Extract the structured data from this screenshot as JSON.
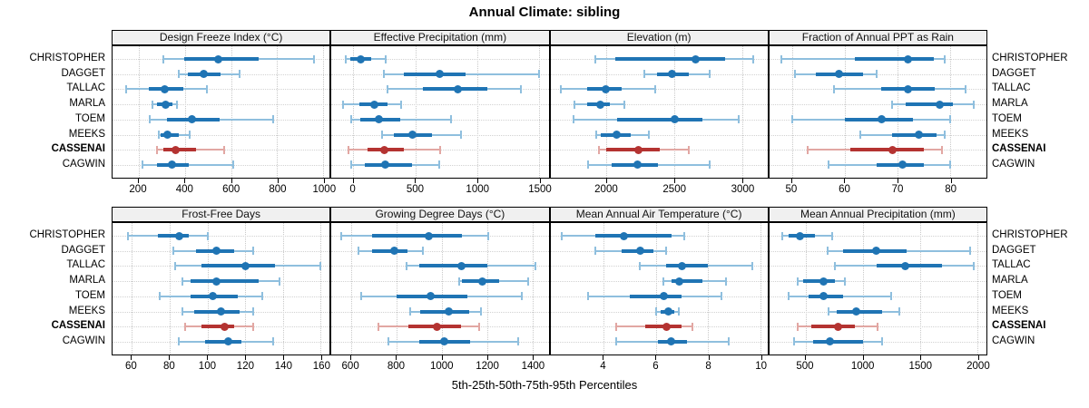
{
  "title": "Annual Climate: sibling",
  "footer": "5th-25th-50th-75th-95th Percentiles",
  "sites": [
    "CHRISTOPHER",
    "DAGGET",
    "TALLAC",
    "MARLA",
    "TOEM",
    "MEEKS",
    "CASSENAI",
    "CAGWIN"
  ],
  "highlight_site": "CASSENAI",
  "colors": {
    "normal": "#1F74B4",
    "normal_light": "#8FBFDE",
    "highlight": "#B43331",
    "highlight_light": "#E2A7A3",
    "grid": "#C9C9C9",
    "strip_bg": "#F0F0F0",
    "border": "#000000"
  },
  "chart_data": {
    "type": "percentile-errorbar",
    "title": "Annual Climate: sibling",
    "xlabel": "5th-25th-50th-75th-95th Percentiles",
    "percentile_levels": [
      5,
      25,
      50,
      75,
      95
    ],
    "layout": "2 rows x 4 columns, shared site rows, grid on, highlighted series CASSENAI in red",
    "panels": [
      {
        "title": "Design Freeze Index (°C)",
        "xlim": [
          87,
          1027
        ],
        "ticks": [
          200,
          400,
          600,
          800,
          1000
        ],
        "series": [
          {
            "site": "CHRISTOPHER",
            "p": [
              307,
              396,
              546,
              719,
              959
            ]
          },
          {
            "site": "DAGGET",
            "p": [
              372,
              413,
              481,
              555,
              636
            ]
          },
          {
            "site": "TALLAC",
            "p": [
              146,
              245,
              312,
              394,
              497
            ]
          },
          {
            "site": "MARLA",
            "p": [
              258,
              281,
              316,
              348,
              364
            ]
          },
          {
            "site": "TOEM",
            "p": [
              250,
              323,
              432,
              552,
              784
            ]
          },
          {
            "site": "MEEKS",
            "p": [
              288,
              297,
              324,
              374,
              420
            ]
          },
          {
            "site": "CASSENAI",
            "p": [
              281,
              307,
              361,
              449,
              571
            ]
          },
          {
            "site": "CAGWIN",
            "p": [
              217,
              281,
              343,
              417,
              610
            ]
          }
        ]
      },
      {
        "title": "Effective Precipitation (mm)",
        "xlim": [
          -177,
          1576
        ],
        "ticks": [
          0,
          500,
          1000,
          1500
        ],
        "series": [
          {
            "site": "CHRISTOPHER",
            "p": [
              -59,
              -25,
              57,
              143,
              261
            ]
          },
          {
            "site": "DAGGET",
            "p": [
              246,
              406,
              697,
              906,
              1497
            ]
          },
          {
            "site": "TALLAC",
            "p": [
              278,
              560,
              845,
              1084,
              1350
            ]
          },
          {
            "site": "MARLA",
            "p": [
              -84,
              49,
              172,
              278,
              389
            ]
          },
          {
            "site": "TOEM",
            "p": [
              -17,
              57,
              204,
              377,
              791
            ]
          },
          {
            "site": "MEEKS",
            "p": [
              229,
              328,
              480,
              635,
              869
            ]
          },
          {
            "site": "CASSENAI",
            "p": [
              -42,
              113,
              249,
              406,
              702
            ]
          },
          {
            "site": "CAGWIN",
            "p": [
              -17,
              94,
              254,
              475,
              690
            ]
          }
        ]
      },
      {
        "title": "Elevation (m)",
        "xlim": [
          1585,
          3188
        ],
        "ticks": [
          2000,
          2500,
          3000
        ],
        "series": [
          {
            "site": "CHRISTOPHER",
            "p": [
              1917,
              2067,
              2657,
              2875,
              3083
            ]
          },
          {
            "site": "DAGGET",
            "p": [
              2280,
              2370,
              2482,
              2605,
              2758
            ]
          },
          {
            "site": "TALLAC",
            "p": [
              1664,
              1854,
              1996,
              2112,
              2359
            ]
          },
          {
            "site": "MARLA",
            "p": [
              1760,
              1854,
              1951,
              2022,
              2128
            ]
          },
          {
            "site": "TOEM",
            "p": [
              1753,
              2075,
              2500,
              2710,
              2975
            ]
          },
          {
            "site": "MEEKS",
            "p": [
              1922,
              1955,
              2074,
              2179,
              2314
            ]
          },
          {
            "site": "CASSENAI",
            "p": [
              1944,
              2000,
              2235,
              2392,
              2605
            ]
          },
          {
            "site": "CAGWIN",
            "p": [
              1861,
              2040,
              2229,
              2381,
              2762
            ]
          }
        ]
      },
      {
        "title": "Fraction of Annual PPT as Rain",
        "xlim": [
          45.7,
          86.9
        ],
        "ticks": [
          50,
          60,
          70,
          80
        ],
        "series": [
          {
            "site": "CHRISTOPHER",
            "p": [
              48,
              62,
              72,
              77,
              79
            ]
          },
          {
            "site": "DAGGET",
            "p": [
              50.5,
              54.5,
              59,
              63.5,
              66
            ]
          },
          {
            "site": "TALLAC",
            "p": [
              58,
              67,
              72,
              77,
              83
            ]
          },
          {
            "site": "MARLA",
            "p": [
              69,
              71.5,
              78,
              80.5,
              84.5
            ]
          },
          {
            "site": "TOEM",
            "p": [
              50,
              60,
              67,
              73,
              80
            ]
          },
          {
            "site": "MEEKS",
            "p": [
              63,
              69,
              74,
              77.5,
              79
            ]
          },
          {
            "site": "CASSENAI",
            "p": [
              53,
              61,
              69,
              75,
              78.5
            ]
          },
          {
            "site": "CAGWIN",
            "p": [
              57,
              66,
              71,
              75,
              80
            ]
          }
        ]
      },
      {
        "title": "Frost-Free Days",
        "xlim": [
          49.8,
          164.7
        ],
        "ticks": [
          60,
          80,
          100,
          120,
          140,
          160
        ],
        "series": [
          {
            "site": "CHRISTOPHER",
            "p": [
              58,
              74,
              85,
              90,
              100
            ]
          },
          {
            "site": "DAGGET",
            "p": [
              82,
              94,
              105,
              114,
              124
            ]
          },
          {
            "site": "TALLAC",
            "p": [
              83,
              97,
              120,
              136,
              160
            ]
          },
          {
            "site": "MARLA",
            "p": [
              87,
              91,
              105,
              127,
              138
            ]
          },
          {
            "site": "TOEM",
            "p": [
              75,
              91,
              103,
              116,
              129
            ]
          },
          {
            "site": "MEEKS",
            "p": [
              87,
              93,
              107,
              117,
              124
            ]
          },
          {
            "site": "CASSENAI",
            "p": [
              88,
              97,
              109,
              114,
              124
            ]
          },
          {
            "site": "CAGWIN",
            "p": [
              85,
              99,
              111,
              118,
              135
            ]
          }
        ]
      },
      {
        "title": "Growing Degree Days (°C)",
        "xlim": [
          513,
          1472
        ],
        "ticks": [
          600,
          800,
          1000,
          1200,
          1400
        ],
        "series": [
          {
            "site": "CHRISTOPHER",
            "p": [
              557,
              691,
              942,
              1090,
              1204
            ]
          },
          {
            "site": "DAGGET",
            "p": [
              631,
              691,
              792,
              848,
              915
            ]
          },
          {
            "site": "TALLAC",
            "p": [
              844,
              902,
              1087,
              1201,
              1415
            ]
          },
          {
            "site": "MARLA",
            "p": [
              1076,
              1090,
              1180,
              1255,
              1381
            ]
          },
          {
            "site": "TOEM",
            "p": [
              644,
              801,
              949,
              1114,
              1354
            ]
          },
          {
            "site": "MEEKS",
            "p": [
              859,
              906,
              1030,
              1123,
              1173
            ]
          },
          {
            "site": "CASSENAI",
            "p": [
              721,
              852,
              980,
              1087,
              1166
            ]
          },
          {
            "site": "CAGWIN",
            "p": [
              765,
              902,
              1013,
              1127,
              1336
            ]
          }
        ]
      },
      {
        "title": "Mean Annual Air Temperature (°C)",
        "xlim": [
          1.97,
          10.28
        ],
        "ticks": [
          4,
          6,
          8,
          10
        ],
        "series": [
          {
            "site": "CHRISTOPHER",
            "p": [
              2.4,
              3.7,
              4.8,
              6.6,
              7.1
            ]
          },
          {
            "site": "DAGGET",
            "p": [
              3.7,
              4.7,
              5.4,
              5.9,
              6.4
            ]
          },
          {
            "site": "TALLAC",
            "p": [
              5.4,
              6.4,
              7.0,
              8.0,
              9.7
            ]
          },
          {
            "site": "MARLA",
            "p": [
              6.3,
              6.6,
              6.9,
              7.8,
              8.7
            ]
          },
          {
            "site": "TOEM",
            "p": [
              3.4,
              5.0,
              6.3,
              7.0,
              8.5
            ]
          },
          {
            "site": "MEEKS",
            "p": [
              6.0,
              6.2,
              6.5,
              6.7,
              6.9
            ]
          },
          {
            "site": "CASSENAI",
            "p": [
              4.5,
              5.6,
              6.4,
              7.0,
              7.4
            ]
          },
          {
            "site": "CAGWIN",
            "p": [
              4.5,
              6.1,
              6.6,
              7.2,
              8.8
            ]
          }
        ]
      },
      {
        "title": "Mean Annual Precipitation (mm)",
        "xlim": [
          184,
          2079
        ],
        "ticks": [
          500,
          1000,
          1500,
          2000
        ],
        "series": [
          {
            "site": "CHRISTOPHER",
            "p": [
              300,
              350,
              455,
              580,
              730
            ]
          },
          {
            "site": "DAGGET",
            "p": [
              690,
              829,
              1118,
              1382,
              1934
            ]
          },
          {
            "site": "TALLAC",
            "p": [
              758,
              1118,
              1368,
              1692,
              1968
            ]
          },
          {
            "site": "MARLA",
            "p": [
              434,
              482,
              658,
              758,
              842
            ]
          },
          {
            "site": "TOEM",
            "p": [
              355,
              526,
              658,
              829,
              1250
            ]
          },
          {
            "site": "MEEKS",
            "p": [
              697,
              776,
              939,
              1166,
              1316
            ]
          },
          {
            "site": "CASSENAI",
            "p": [
              429,
              547,
              784,
              934,
              1126
            ]
          },
          {
            "site": "CAGWIN",
            "p": [
              403,
              566,
              711,
              1000,
              1166
            ]
          }
        ]
      }
    ]
  }
}
